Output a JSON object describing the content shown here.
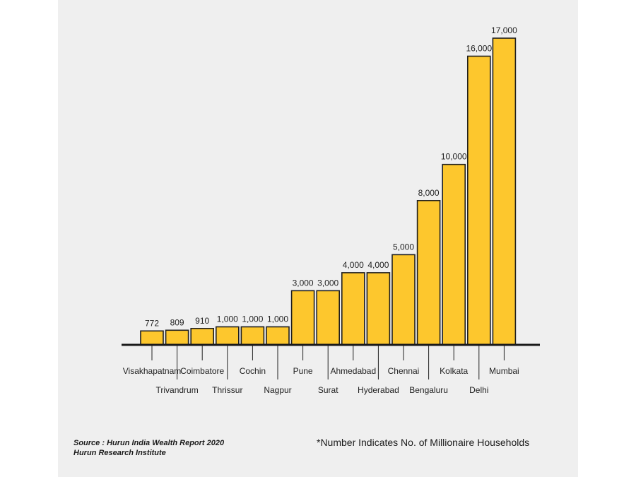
{
  "chart_data": {
    "type": "bar",
    "categories": [
      "Visakhapatnam",
      "Trivandrum",
      "Coimbatore",
      "Thrissur",
      "Cochin",
      "Nagpur",
      "Pune",
      "Surat",
      "Ahmedabad",
      "Hyderabad",
      "Chennai",
      "Bengaluru",
      "Kolkata",
      "Delhi",
      "Mumbai"
    ],
    "values": [
      772,
      809,
      910,
      1000,
      1000,
      1000,
      3000,
      3000,
      4000,
      4000,
      5000,
      8000,
      10000,
      16000,
      17000
    ],
    "value_labels": [
      "772",
      "809",
      "910",
      "1,000",
      "1,000",
      "1,000",
      "3,000",
      "3,000",
      "4,000",
      "4,000",
      "5,000",
      "8,000",
      "10,000",
      "16,000",
      "17,000"
    ],
    "ylim": [
      0,
      17000
    ],
    "grid": false,
    "colors": {
      "bar": "#fdc72d",
      "outline": "#1f1f1f"
    }
  },
  "footer": {
    "source_line1": "Source : Hurun India Wealth Report 2020",
    "source_line2": "Hurun Research Institute",
    "note": "*Number Indicates No. of Millionaire Households"
  }
}
